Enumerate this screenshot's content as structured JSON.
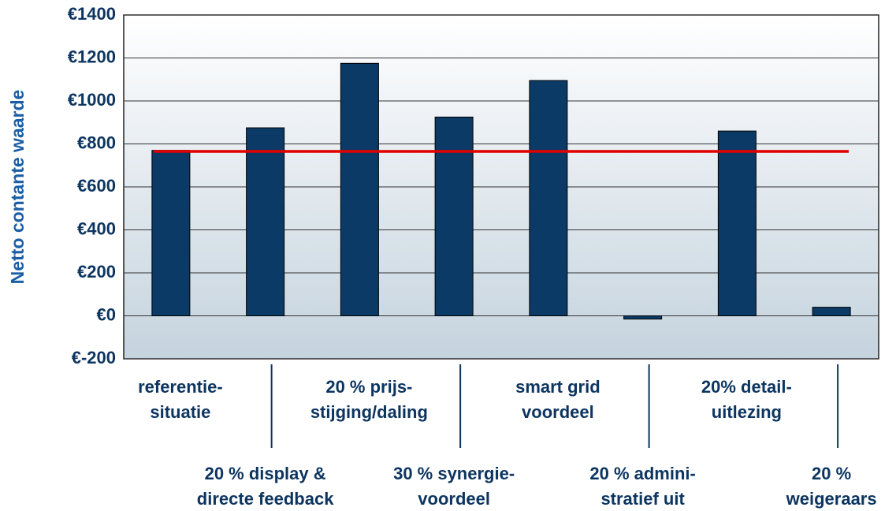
{
  "chart_data": {
    "type": "bar",
    "ylabel": "Netto contante waarde",
    "categories": [
      [
        "referentie-",
        "situatie"
      ],
      [
        "20 % display &",
        "directe feedback"
      ],
      [
        "20 % prijs-",
        "stijging/daling"
      ],
      [
        "30 % synergie-",
        "voordeel"
      ],
      [
        "smart grid",
        "voordeel"
      ],
      [
        "20 % admini-",
        "stratief uit"
      ],
      [
        "20% detail-",
        "uitlezing"
      ],
      [
        "20 %",
        "weigeraars"
      ]
    ],
    "values": [
      770,
      875,
      1175,
      925,
      1095,
      -15,
      860,
      40
    ],
    "color": "#0b3a66",
    "reference_line": {
      "value": 765,
      "color": "#e00000"
    },
    "ylim": [
      -200,
      1400
    ],
    "yticks": [
      {
        "value": -200,
        "label": "€-200"
      },
      {
        "value": 0,
        "label": "€0"
      },
      {
        "value": 200,
        "label": "€200"
      },
      {
        "value": 400,
        "label": "€400"
      },
      {
        "value": 600,
        "label": "€600"
      },
      {
        "value": 800,
        "label": "€800"
      },
      {
        "value": 1000,
        "label": "€1000"
      },
      {
        "value": 1200,
        "label": "€1200"
      },
      {
        "value": 1400,
        "label": "€1400"
      }
    ],
    "grid": true
  }
}
